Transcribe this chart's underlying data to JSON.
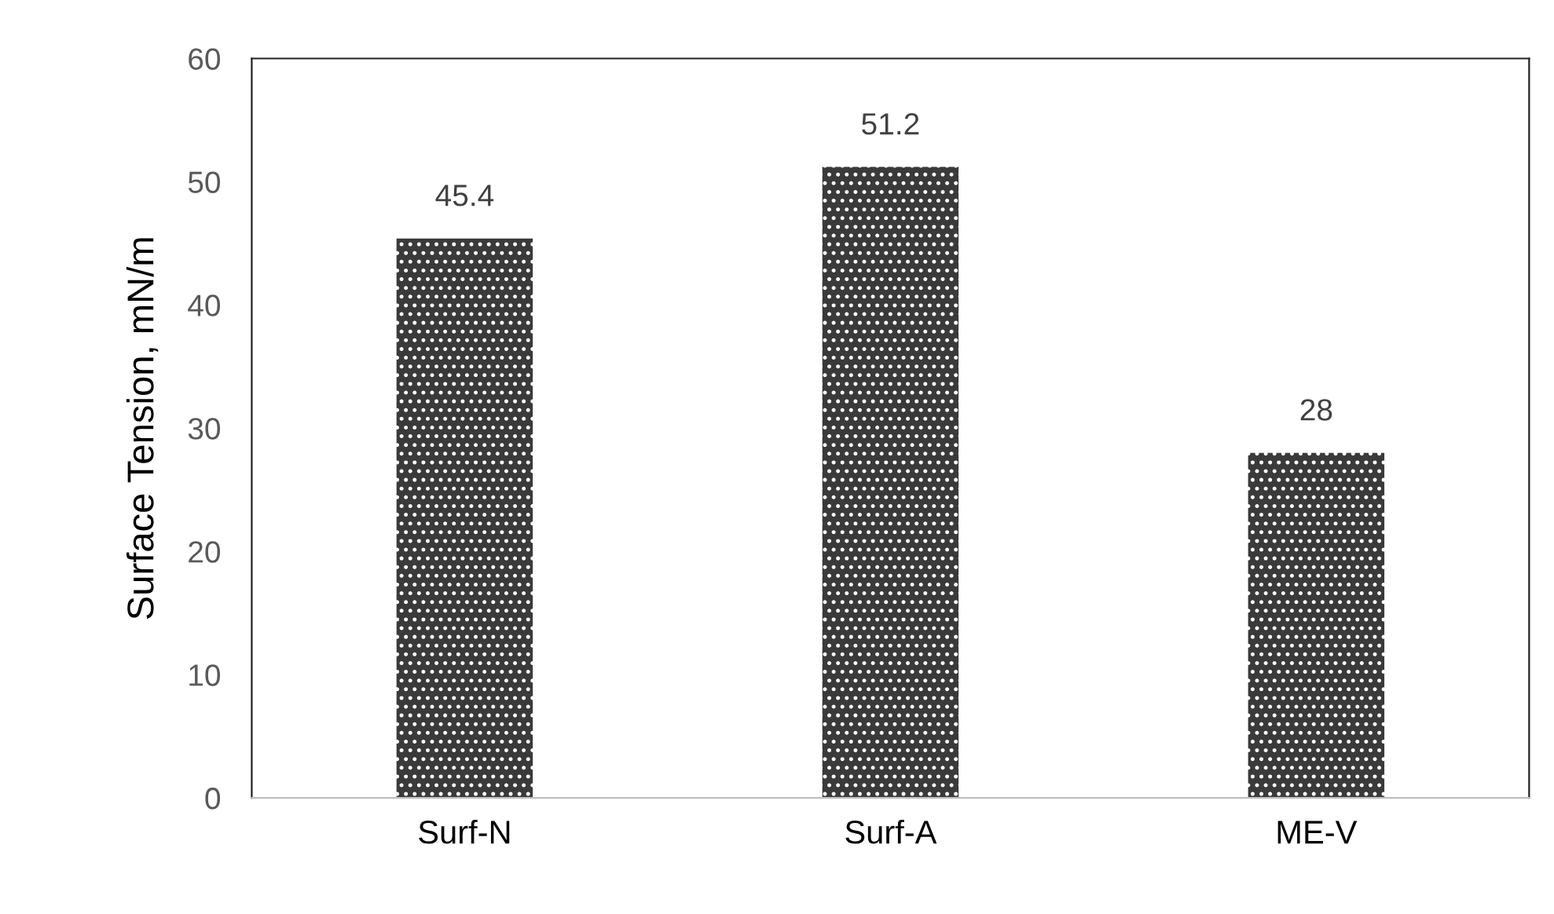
{
  "chart_data": {
    "type": "bar",
    "ylabel": "Surface Tension, mN/m",
    "categories": [
      "Surf-N",
      "Surf-A",
      "ME-V"
    ],
    "values": [
      45.4,
      51.2,
      28
    ],
    "color": "#3a3a3a",
    "ylim": [
      0,
      60
    ],
    "yticks": [
      0,
      10,
      20,
      30,
      40,
      50,
      60
    ],
    "data_labels": true,
    "grid": false,
    "legend": false
  }
}
